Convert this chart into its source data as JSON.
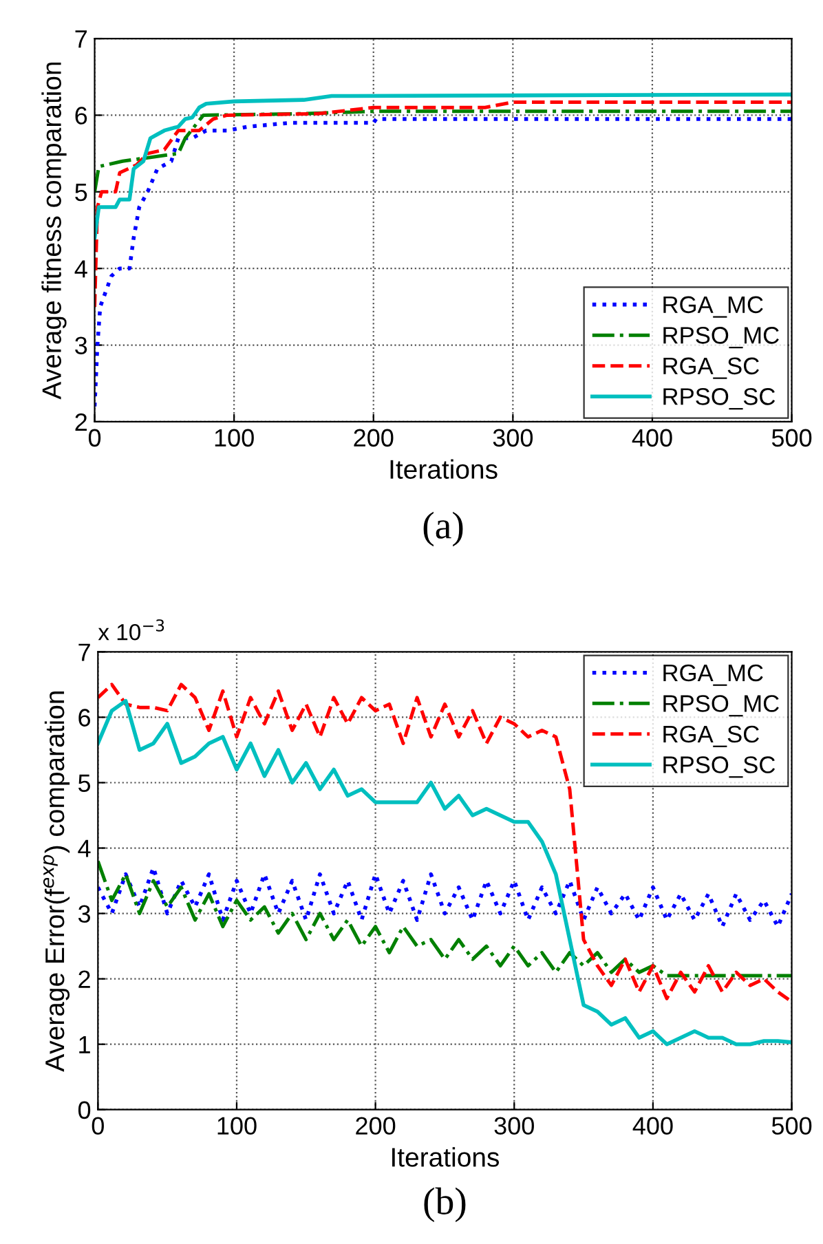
{
  "chart_data": [
    {
      "type": "line",
      "ylabel": "Average fitness comparation",
      "xlabel": "Iterations",
      "annotations": [
        "(a)"
      ],
      "xlim": [
        0,
        500
      ],
      "ylim": [
        2,
        7
      ],
      "xticks": [
        0,
        100,
        200,
        300,
        400,
        500
      ],
      "yticks": [
        2,
        3,
        4,
        5,
        6,
        7
      ],
      "grid": true,
      "legend": "bottom right",
      "series": [
        {
          "name": "RGA_MC",
          "color": "#0000ff",
          "line_style": "dotted",
          "x": [
            0,
            2,
            4,
            8,
            12,
            18,
            25,
            28,
            32,
            38,
            45,
            55,
            60,
            70,
            80,
            95,
            110,
            140,
            200,
            202,
            500
          ],
          "values": [
            2.2,
            3.0,
            3.5,
            3.7,
            3.9,
            4.0,
            4.0,
            4.4,
            4.8,
            5.0,
            5.3,
            5.4,
            5.7,
            5.7,
            5.8,
            5.8,
            5.85,
            5.9,
            5.9,
            5.95,
            5.95
          ]
        },
        {
          "name": "RPSO_MC",
          "color": "#008000",
          "line_style": "dashdot",
          "x": [
            0,
            3,
            20,
            40,
            60,
            65,
            78,
            150,
            200,
            500
          ],
          "values": [
            5.0,
            5.33,
            5.4,
            5.45,
            5.5,
            5.7,
            6.0,
            6.02,
            6.05,
            6.05
          ]
        },
        {
          "name": "RGA_SC",
          "color": "#ff0000",
          "line_style": "dashed",
          "x": [
            0,
            2,
            5,
            15,
            18,
            30,
            38,
            50,
            60,
            75,
            85,
            95,
            160,
            200,
            280,
            300,
            500
          ],
          "values": [
            3.5,
            4.8,
            5.0,
            5.0,
            5.25,
            5.35,
            5.5,
            5.55,
            5.8,
            5.8,
            5.95,
            6.0,
            6.02,
            6.1,
            6.1,
            6.17,
            6.17
          ]
        },
        {
          "name": "RPSO_SC",
          "color": "#00bfbf",
          "line_style": "solid",
          "x": [
            0,
            3,
            15,
            18,
            25,
            28,
            35,
            40,
            45,
            50,
            60,
            65,
            70,
            75,
            80,
            100,
            150,
            170,
            500
          ],
          "values": [
            4.4,
            4.8,
            4.8,
            4.9,
            4.9,
            5.3,
            5.4,
            5.7,
            5.75,
            5.8,
            5.85,
            5.95,
            5.97,
            6.1,
            6.15,
            6.18,
            6.2,
            6.25,
            6.27
          ]
        }
      ]
    },
    {
      "type": "line",
      "ylabel": "Average Error(f$^{exp}$) comparation",
      "xlabel": "Iterations",
      "annotations": [
        "x 10$^{−3}$",
        "(b)"
      ],
      "xlim": [
        0,
        500
      ],
      "ylim": [
        0,
        7
      ],
      "xticks": [
        0,
        100,
        200,
        300,
        400,
        500
      ],
      "yticks": [
        0,
        1,
        2,
        3,
        4,
        5,
        6,
        7
      ],
      "grid": true,
      "legend": "top right",
      "x": [
        0,
        10,
        20,
        30,
        40,
        50,
        60,
        70,
        80,
        90,
        100,
        110,
        120,
        130,
        140,
        150,
        160,
        170,
        180,
        190,
        200,
        210,
        220,
        230,
        240,
        250,
        260,
        270,
        280,
        290,
        300,
        310,
        320,
        330,
        340,
        350,
        360,
        370,
        380,
        390,
        400,
        410,
        420,
        430,
        440,
        450,
        460,
        470,
        480,
        490,
        500
      ],
      "series": [
        {
          "name": "RGA_MC",
          "color": "#0000ff",
          "line_style": "dotted",
          "values": [
            3.4,
            3.0,
            3.6,
            3.1,
            3.7,
            3.0,
            3.5,
            3.1,
            3.6,
            2.9,
            3.5,
            3.0,
            3.6,
            3.0,
            3.5,
            2.9,
            3.6,
            3.0,
            3.5,
            2.9,
            3.6,
            3.0,
            3.5,
            2.9,
            3.6,
            3.0,
            3.4,
            2.9,
            3.5,
            3.0,
            3.5,
            2.9,
            3.4,
            3.0,
            3.5,
            2.9,
            3.4,
            3.0,
            3.3,
            2.9,
            3.4,
            2.9,
            3.3,
            2.9,
            3.3,
            2.8,
            3.3,
            2.9,
            3.2,
            2.8,
            3.3
          ]
        },
        {
          "name": "RPSO_MC",
          "color": "#008000",
          "line_style": "dashdot",
          "values": [
            3.8,
            3.2,
            3.6,
            3.0,
            3.5,
            3.1,
            3.4,
            2.9,
            3.3,
            2.8,
            3.2,
            2.9,
            3.1,
            2.7,
            3.0,
            2.6,
            3.0,
            2.6,
            2.9,
            2.5,
            2.8,
            2.4,
            2.8,
            2.5,
            2.6,
            2.3,
            2.6,
            2.3,
            2.5,
            2.2,
            2.5,
            2.2,
            2.4,
            2.1,
            2.4,
            2.2,
            2.4,
            2.1,
            2.3,
            2.1,
            2.2,
            2.05,
            2.05,
            2.05,
            2.05,
            2.05,
            2.05,
            2.05,
            2.05,
            2.05,
            2.05
          ]
        },
        {
          "name": "RGA_SC",
          "color": "#ff0000",
          "line_style": "dashed",
          "values": [
            6.3,
            6.5,
            6.2,
            6.15,
            6.15,
            6.1,
            6.5,
            6.3,
            5.8,
            6.4,
            5.7,
            6.3,
            5.9,
            6.4,
            5.8,
            6.2,
            5.7,
            6.3,
            5.9,
            6.3,
            6.1,
            6.2,
            5.6,
            6.3,
            5.7,
            6.2,
            5.7,
            6.1,
            5.6,
            6.0,
            5.9,
            5.7,
            5.8,
            5.7,
            4.9,
            2.6,
            2.2,
            1.9,
            2.3,
            1.8,
            2.2,
            1.7,
            2.1,
            1.8,
            2.2,
            1.8,
            2.1,
            1.9,
            2.0,
            1.8,
            1.65
          ]
        },
        {
          "name": "RPSO_SC",
          "color": "#00bfbf",
          "line_style": "solid",
          "values": [
            5.6,
            6.1,
            6.25,
            5.5,
            5.6,
            5.9,
            5.3,
            5.4,
            5.6,
            5.7,
            5.2,
            5.6,
            5.1,
            5.5,
            5.0,
            5.3,
            4.9,
            5.2,
            4.8,
            4.9,
            4.7,
            4.7,
            4.7,
            4.7,
            5.0,
            4.6,
            4.8,
            4.5,
            4.6,
            4.5,
            4.4,
            4.4,
            4.1,
            3.6,
            2.6,
            1.6,
            1.5,
            1.3,
            1.4,
            1.1,
            1.2,
            1.0,
            1.1,
            1.2,
            1.1,
            1.1,
            1.0,
            1.0,
            1.05,
            1.05,
            1.03
          ]
        }
      ]
    }
  ]
}
